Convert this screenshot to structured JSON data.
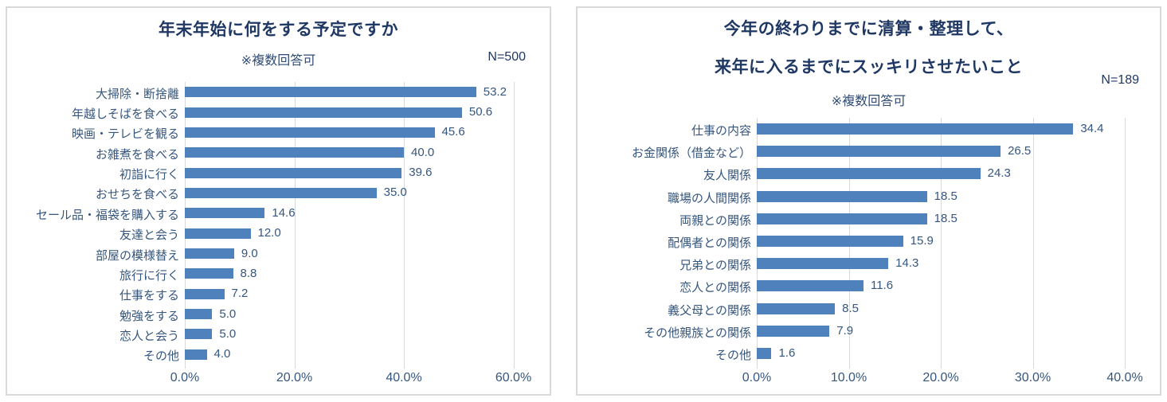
{
  "page": {
    "background": "#ffffff"
  },
  "colors": {
    "bar": "#4f81bd",
    "title_text": "#1f3864",
    "label_text": "#35567f",
    "gridline": "#d9d9d9",
    "panel_border": "#d9d9d9"
  },
  "chart_data": [
    {
      "type": "bar",
      "orientation": "horizontal",
      "title": "年末年始に何をする予定ですか",
      "subtitle": "※複数回答可",
      "n_label": "N=500",
      "categories": [
        "大掃除・断捨離",
        "年越しそばを食べる",
        "映画・テレビを観る",
        "お雑煮を食べる",
        "初詣に行く",
        "おせちを食べる",
        "セール品・福袋を購入する",
        "友達と会う",
        "部屋の模様替え",
        "旅行に行く",
        "仕事をする",
        "勉強をする",
        "恋人と会う",
        "その他"
      ],
      "values": [
        53.2,
        50.6,
        45.6,
        40.0,
        39.6,
        35.0,
        14.6,
        12.0,
        9.0,
        8.8,
        7.2,
        5.0,
        5.0,
        4.0
      ],
      "xlabel": "",
      "ylabel": "",
      "xlim": [
        0,
        60
      ],
      "xticks": [
        "0.0%",
        "20.0%",
        "40.0%",
        "60.0%"
      ],
      "xtick_values": [
        0,
        20,
        40,
        60
      ],
      "grid": true,
      "legend": false
    },
    {
      "type": "bar",
      "orientation": "horizontal",
      "title_lines": [
        "今年の終わりまでに清算・整理して、",
        "来年に入るまでにスッキリさせたいこと"
      ],
      "subtitle": "※複数回答可",
      "n_label": "N=189",
      "categories": [
        "仕事の内容",
        "お金関係（借金など）",
        "友人関係",
        "職場の人間関係",
        "両親との関係",
        "配偶者との関係",
        "兄弟との関係",
        "恋人との関係",
        "義父母との関係",
        "その他親族との関係",
        "その他"
      ],
      "values": [
        34.4,
        26.5,
        24.3,
        18.5,
        18.5,
        15.9,
        14.3,
        11.6,
        8.5,
        7.9,
        1.6
      ],
      "xlabel": "",
      "ylabel": "",
      "xlim": [
        0,
        40
      ],
      "xticks": [
        "0.0%",
        "10.0%",
        "20.0%",
        "30.0%",
        "40.0%"
      ],
      "xtick_values": [
        0,
        10,
        20,
        30,
        40
      ],
      "grid": true,
      "legend": false
    }
  ]
}
